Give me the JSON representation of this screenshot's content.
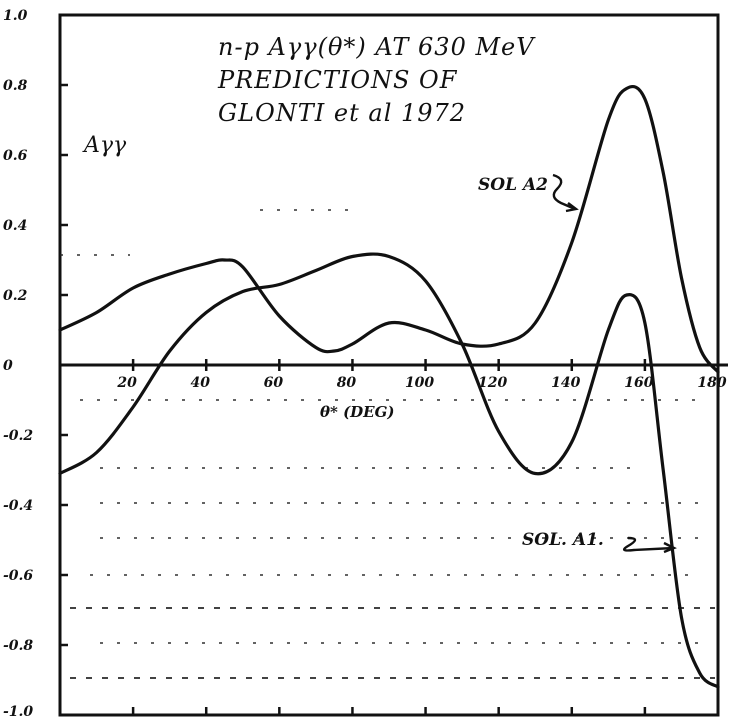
{
  "chart_data": {
    "type": "line",
    "title_lines": [
      "n-p Aγγ(θ*) AT 630 MeV",
      "PREDICTIONS   OF",
      "GLONTI et al 1972"
    ],
    "ylabel": "Aγγ",
    "xlabel": "θ* (DEG)",
    "xlim": [
      0,
      180
    ],
    "ylim": [
      -1.0,
      1.0
    ],
    "x_ticks": [
      "20",
      "40",
      "60",
      "80",
      "100",
      "120",
      "140",
      "160",
      "180"
    ],
    "y_ticks": [
      "1.0",
      "0.8",
      "0.6",
      "0.4",
      "0.2",
      "0",
      "-0.2",
      "-0.4",
      "-0.6",
      "-0.8",
      "-1.0"
    ],
    "grid": false,
    "series": [
      {
        "name": "SOL A2",
        "x": [
          0,
          10,
          20,
          30,
          40,
          45,
          50,
          60,
          70,
          75,
          80,
          90,
          100,
          110,
          120,
          130,
          140,
          150,
          155,
          160,
          165,
          170,
          175,
          180
        ],
        "y": [
          0.1,
          0.15,
          0.22,
          0.26,
          0.29,
          0.3,
          0.28,
          0.14,
          0.05,
          0.04,
          0.06,
          0.12,
          0.1,
          0.06,
          0.06,
          0.12,
          0.35,
          0.7,
          0.79,
          0.76,
          0.55,
          0.25,
          0.05,
          -0.02
        ]
      },
      {
        "name": "SOL A1",
        "x": [
          0,
          10,
          20,
          30,
          40,
          50,
          60,
          70,
          80,
          90,
          100,
          110,
          120,
          130,
          140,
          150,
          155,
          160,
          165,
          170,
          175,
          180
        ],
        "y": [
          -0.31,
          -0.25,
          -0.12,
          0.04,
          0.15,
          0.21,
          0.23,
          0.27,
          0.31,
          0.31,
          0.24,
          0.06,
          -0.19,
          -0.31,
          -0.22,
          0.1,
          0.2,
          0.12,
          -0.3,
          -0.72,
          -0.88,
          -0.92
        ]
      }
    ],
    "annotations": [
      {
        "text": "SOL A2",
        "series": "SOL A2"
      },
      {
        "text": "SOL. A1.",
        "series": "SOL A1"
      }
    ]
  }
}
